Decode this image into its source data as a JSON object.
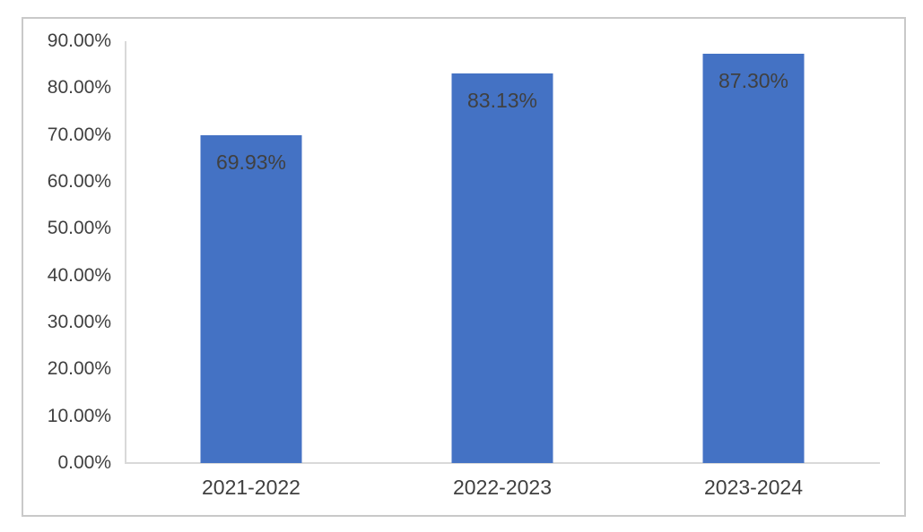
{
  "chart_data": {
    "type": "bar",
    "title": "",
    "xlabel": "",
    "ylabel": "",
    "categories": [
      "2021-2022",
      "2022-2023",
      "2023-2024"
    ],
    "values": [
      69.93,
      83.13,
      87.3
    ],
    "data_labels": [
      "69.93%",
      "83.13%",
      "87.30%"
    ],
    "y_ticks": [
      {
        "value": 90,
        "label": "90.00%"
      },
      {
        "value": 80,
        "label": "80.00%"
      },
      {
        "value": 70,
        "label": "70.00%"
      },
      {
        "value": 60,
        "label": "60.00%"
      },
      {
        "value": 50,
        "label": "50.00%"
      },
      {
        "value": 40,
        "label": "40.00%"
      },
      {
        "value": 30,
        "label": "30.00%"
      },
      {
        "value": 20,
        "label": "20.00%"
      },
      {
        "value": 10,
        "label": "10.00%"
      },
      {
        "value": 0,
        "label": "0.00%"
      }
    ],
    "ylim": [
      0,
      90
    ],
    "grid": false,
    "legend": "none",
    "colors": {
      "bar": "#4472C4",
      "tick_label": "#404040",
      "data_label": "#404040",
      "axis_line": "#D9D9D9",
      "frame_border": "#C9C9C9",
      "background": "#FFFFFF"
    }
  }
}
